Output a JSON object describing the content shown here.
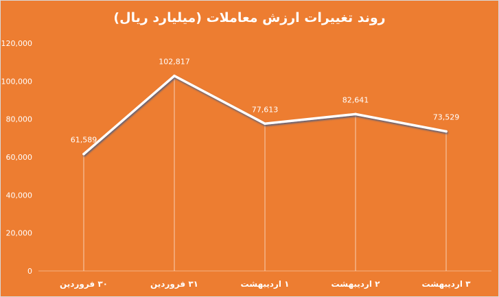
{
  "chart_data": {
    "type": "line",
    "title": "روند تغییرات ارزش معاملات (میلیارد ریال)",
    "categories": [
      "۳۰ فروردین",
      "۳۱ فروردین",
      "۱ اردیبهشت",
      "۲ اردیبهشت",
      "۳ اردیبهشت"
    ],
    "values": [
      61589,
      102817,
      77613,
      82641,
      73529
    ],
    "data_labels": [
      "61,589",
      "102,817",
      "77,613",
      "82,641",
      "73,529"
    ],
    "ylim": [
      0,
      120000
    ],
    "yticks": [
      "0",
      "20,000",
      "40,000",
      "60,000",
      "80,000",
      "100,000",
      "120,000"
    ],
    "xlabel": "",
    "ylabel": "",
    "line_color": "#FFFFFF",
    "drop_lines": true,
    "grid": false
  }
}
